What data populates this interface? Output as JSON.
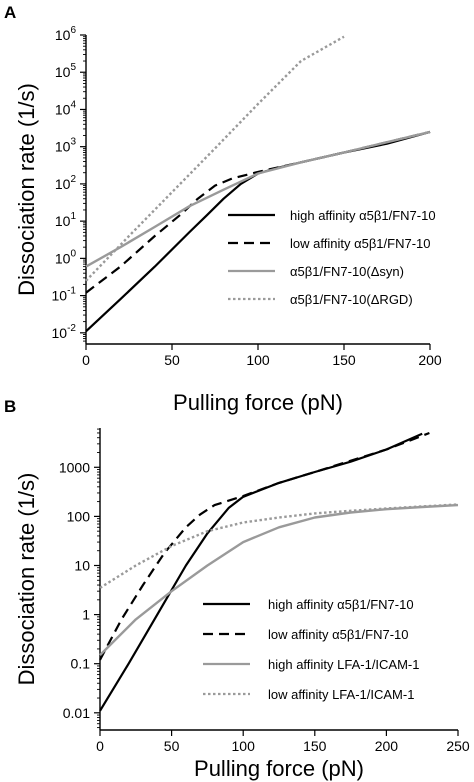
{
  "chart_data": [
    {
      "type": "line",
      "panel": "A",
      "xlabel": "Pulling force (pN)",
      "ylabel": "Dissociation rate (1/s)",
      "xlim": [
        0,
        200
      ],
      "ylim_log10": [
        -2.3,
        6
      ],
      "yscale": "log",
      "xticks": [
        0,
        50,
        100,
        150,
        200
      ],
      "yticks": [
        {
          "base": "10",
          "exp": "-2"
        },
        {
          "base": "10",
          "exp": "-1"
        },
        {
          "base": "10",
          "exp": "0"
        },
        {
          "base": "10",
          "exp": "1"
        },
        {
          "base": "10",
          "exp": "2"
        },
        {
          "base": "10",
          "exp": "3"
        },
        {
          "base": "10",
          "exp": "4"
        },
        {
          "base": "10",
          "exp": "5"
        },
        {
          "base": "10",
          "exp": "6"
        }
      ],
      "legend_position": "lower-right",
      "series": [
        {
          "name": "high affinity α5β1/FN7-10",
          "style": "solid",
          "color": "#000000",
          "x": [
            0,
            20,
            40,
            60,
            70,
            80,
            90,
            100,
            110,
            125,
            150,
            175,
            200
          ],
          "y": [
            0.011,
            0.08,
            0.6,
            5,
            14,
            40,
            100,
            190,
            260,
            380,
            700,
            1200,
            2500
          ]
        },
        {
          "name": "low affinity α5β1/FN7-10",
          "style": "dashed",
          "color": "#000000",
          "x": [
            0,
            20,
            40,
            55,
            65,
            75,
            85,
            100,
            125,
            150,
            200
          ],
          "y": [
            0.12,
            0.6,
            4,
            15,
            40,
            90,
            140,
            210,
            380,
            700,
            2500
          ]
        },
        {
          "name": "α5β1/FN7-10(Δsyn)",
          "style": "solid",
          "color": "#9a9a9a",
          "x": [
            0,
            20,
            40,
            60,
            80,
            100,
            125,
            150,
            200
          ],
          "y": [
            0.6,
            2,
            7,
            25,
            70,
            190,
            380,
            700,
            2500
          ]
        },
        {
          "name": "α5β1/FN7-10(ΔRGD)",
          "style": "dotted",
          "color": "#9a9a9a",
          "x": [
            0,
            25,
            50,
            75,
            100,
            125,
            150
          ],
          "y": [
            0.25,
            4,
            60,
            900,
            14000,
            200000,
            900000
          ]
        }
      ]
    },
    {
      "type": "line",
      "panel": "B",
      "xlabel": "Pulling force (pN)",
      "ylabel": "Dissociation rate (1/s)",
      "xlim": [
        0,
        250
      ],
      "ylim_log10": [
        -2.35,
        3.8
      ],
      "yscale": "log",
      "xticks": [
        "0",
        "50",
        "100",
        "150",
        "200",
        "250"
      ],
      "yticks": [
        "0.01",
        "0.1",
        "1",
        "10",
        "100",
        "1000"
      ],
      "legend_position": "lower-right",
      "series": [
        {
          "name": "high affinity α5β1/FN7-10",
          "style": "solid",
          "color": "#000000",
          "x": [
            0,
            20,
            40,
            60,
            75,
            90,
            100,
            125,
            150,
            175,
            200,
            225
          ],
          "y": [
            0.011,
            0.1,
            1,
            10,
            45,
            150,
            250,
            480,
            800,
            1300,
            2300,
            4800
          ]
        },
        {
          "name": "low affinity α5β1/FN7-10",
          "style": "dashed",
          "color": "#000000",
          "x": [
            0,
            15,
            30,
            45,
            60,
            70,
            80,
            100,
            125,
            150,
            200,
            230
          ],
          "y": [
            0.12,
            0.8,
            4,
            18,
            60,
            110,
            170,
            260,
            480,
            800,
            2300,
            5000
          ]
        },
        {
          "name": "high affinity LFA-1/ICAM-1",
          "style": "solid",
          "color": "#9a9a9a",
          "x": [
            0,
            25,
            50,
            75,
            100,
            125,
            150,
            175,
            200,
            225,
            250
          ],
          "y": [
            0.15,
            0.8,
            3,
            10,
            30,
            60,
            95,
            120,
            140,
            155,
            170
          ]
        },
        {
          "name": "low affinity LFA-1/ICAM-1",
          "style": "dotted",
          "color": "#9a9a9a",
          "x": [
            0,
            25,
            50,
            75,
            100,
            125,
            150,
            175,
            200,
            225,
            250
          ],
          "y": [
            3.5,
            10,
            25,
            50,
            75,
            95,
            115,
            130,
            145,
            160,
            175
          ]
        }
      ]
    }
  ]
}
